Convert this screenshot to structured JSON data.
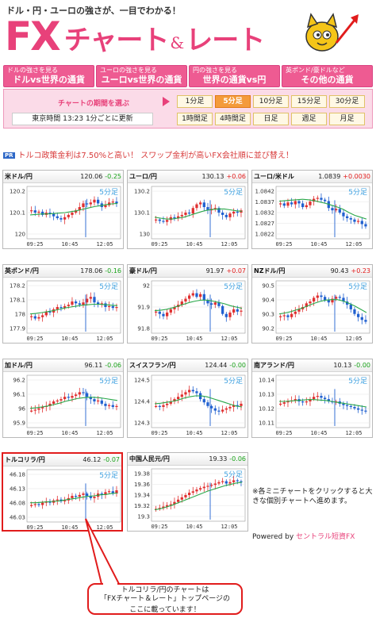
{
  "header": {
    "tagline": "ドル・円・ユーロの強さが、一目でわかる！",
    "logo_fx": "FX",
    "logo_chart": "チャート",
    "logo_amp": "&",
    "logo_rate": "レート",
    "mascot_icon": "cat-mascot-icon"
  },
  "tabs": [
    {
      "small": "ドルの強さを見る",
      "big": "ドルvs世界の通貨"
    },
    {
      "small": "ユーロの強さを見る",
      "big": "ユーロvs世界の通貨"
    },
    {
      "small": "円の強さを見る",
      "big": "世界の通貨vs円"
    },
    {
      "small": "英ポンド/豪ドルなど",
      "big": "その他の通貨"
    }
  ],
  "period": {
    "label": "チャートの期間を選ぶ",
    "clock_text": "東京時間 13:23 1分ごとに更新",
    "buttons": [
      "1分足",
      "5分足",
      "10分足",
      "15分足",
      "30分足",
      "1時間足",
      "4時間足",
      "日足",
      "週足",
      "月足"
    ],
    "active": "5分足"
  },
  "notice": {
    "badge": "PR",
    "text": "トルコ政策金利は7.50%と高い！ スワップ金利が高いFX会社順に並び替え！"
  },
  "colors": {
    "brand_pink": "#e8417a",
    "up": "#e21a1a",
    "down": "#1aa31a",
    "candle_up": "#e03030",
    "candle_down": "#2060d0",
    "ma": "#2aa84a",
    "timeframe_label": "#3da0e0"
  },
  "charts": [
    {
      "name": "米ドル/円",
      "price": "120.06",
      "change": "-0.25",
      "dir": "down",
      "tf": "5分足",
      "y_labels": [
        "120.2",
        "120.1",
        "120"
      ],
      "x_labels": [
        "09:25",
        "10:45",
        "12:05"
      ],
      "trend": [
        0.55,
        0.5,
        0.52,
        0.45,
        0.5,
        0.48,
        0.42,
        0.38,
        0.35,
        0.4,
        0.45,
        0.5,
        0.55,
        0.62,
        0.7,
        0.68,
        0.72,
        0.78,
        0.7,
        0.62,
        0.66,
        0.72,
        0.74,
        0.7
      ],
      "ma": [
        0.45,
        0.46,
        0.47,
        0.47,
        0.48,
        0.49,
        0.5,
        0.52,
        0.54,
        0.57,
        0.6,
        0.63,
        0.65,
        0.67,
        0.69,
        0.7
      ]
    },
    {
      "name": "ユーロ/円",
      "price": "130.13",
      "change": "+0.06",
      "dir": "up",
      "tf": "5分足",
      "y_labels": [
        "130.2",
        "130.1",
        "130"
      ],
      "x_labels": [
        "09:25",
        "10:45",
        "12:05"
      ],
      "trend": [
        0.35,
        0.32,
        0.3,
        0.34,
        0.4,
        0.38,
        0.42,
        0.45,
        0.5,
        0.48,
        0.6,
        0.68,
        0.72,
        0.62,
        0.55,
        0.58,
        0.6,
        0.5,
        0.45,
        0.4,
        0.48,
        0.52,
        0.5,
        0.55
      ],
      "ma": [
        0.4,
        0.38,
        0.36,
        0.36,
        0.38,
        0.4,
        0.44,
        0.48,
        0.52,
        0.55,
        0.57,
        0.58,
        0.58,
        0.56,
        0.54,
        0.53
      ]
    },
    {
      "name": "ユーロ/米ドル",
      "price": "1.0839",
      "change": "+0.0030",
      "dir": "up",
      "tf": "5分足",
      "y_labels": [
        "1.0842",
        "1.0837",
        "1.0832",
        "1.0827",
        "1.0822"
      ],
      "x_labels": [
        "09:25",
        "10:45",
        "12:05"
      ],
      "trend": [
        0.7,
        0.65,
        0.72,
        0.68,
        0.75,
        0.7,
        0.62,
        0.66,
        0.74,
        0.8,
        0.82,
        0.78,
        0.75,
        0.6,
        0.55,
        0.58,
        0.5,
        0.42,
        0.38,
        0.35,
        0.3,
        0.32,
        0.25,
        0.2
      ],
      "ma": [
        0.75,
        0.76,
        0.77,
        0.78,
        0.79,
        0.78,
        0.76,
        0.73,
        0.7,
        0.66,
        0.62,
        0.57,
        0.5,
        0.44,
        0.4,
        0.36
      ]
    },
    {
      "name": "英ポンド/円",
      "price": "178.06",
      "change": "-0.16",
      "dir": "down",
      "tf": "5分足",
      "y_labels": [
        "178.2",
        "178.1",
        "178",
        "177.9"
      ],
      "x_labels": [
        "09:25",
        "10:45",
        "12:05"
      ],
      "trend": [
        0.3,
        0.25,
        0.28,
        0.32,
        0.4,
        0.38,
        0.45,
        0.5,
        0.48,
        0.52,
        0.55,
        0.62,
        0.58,
        0.55,
        0.6,
        0.68,
        0.72,
        0.6,
        0.55,
        0.58,
        0.5,
        0.52,
        0.48,
        0.5
      ],
      "ma": [
        0.35,
        0.36,
        0.38,
        0.4,
        0.42,
        0.45,
        0.48,
        0.5,
        0.52,
        0.54,
        0.55,
        0.56,
        0.56,
        0.55,
        0.54,
        0.53
      ]
    },
    {
      "name": "豪ドル/円",
      "price": "91.97",
      "change": "+0.07",
      "dir": "up",
      "tf": "5分足",
      "y_labels": [
        "92",
        "91.9",
        "91.8"
      ],
      "x_labels": [
        "09:25",
        "10:45",
        "12:05"
      ],
      "trend": [
        0.4,
        0.35,
        0.3,
        0.38,
        0.45,
        0.5,
        0.55,
        0.62,
        0.68,
        0.75,
        0.8,
        0.72,
        0.78,
        0.65,
        0.58,
        0.55,
        0.6,
        0.52,
        0.35,
        0.28,
        0.38,
        0.45,
        0.4,
        0.42
      ],
      "ma": [
        0.42,
        0.43,
        0.45,
        0.48,
        0.52,
        0.56,
        0.6,
        0.63,
        0.65,
        0.65,
        0.63,
        0.6,
        0.57,
        0.53,
        0.5,
        0.47
      ]
    },
    {
      "name": "NZドル/円",
      "price": "90.43",
      "change": "+0.23",
      "dir": "up",
      "tf": "5分足",
      "y_labels": [
        "90.5",
        "90.4",
        "90.3",
        "90.2"
      ],
      "x_labels": [
        "09:25",
        "10:45",
        "12:05"
      ],
      "trend": [
        0.3,
        0.32,
        0.28,
        0.35,
        0.4,
        0.45,
        0.5,
        0.58,
        0.62,
        0.7,
        0.75,
        0.72,
        0.65,
        0.6,
        0.68,
        0.72,
        0.7,
        0.62,
        0.55,
        0.45,
        0.35,
        0.28,
        0.22,
        0.18
      ],
      "ma": [
        0.35,
        0.37,
        0.4,
        0.44,
        0.48,
        0.53,
        0.58,
        0.62,
        0.65,
        0.66,
        0.66,
        0.63,
        0.58,
        0.52,
        0.45,
        0.38
      ]
    },
    {
      "name": "加ドル/円",
      "price": "96.11",
      "change": "-0.06",
      "dir": "down",
      "tf": "5分足",
      "y_labels": [
        "96.2",
        "96.1",
        "96",
        "95.9"
      ],
      "x_labels": [
        "09:25",
        "10:45",
        "12:05"
      ],
      "trend": [
        0.3,
        0.32,
        0.35,
        0.38,
        0.4,
        0.45,
        0.5,
        0.52,
        0.55,
        0.6,
        0.58,
        0.62,
        0.65,
        0.7,
        0.68,
        0.6,
        0.55,
        0.5,
        0.52,
        0.45,
        0.4,
        0.42,
        0.38,
        0.4
      ],
      "ma": [
        0.35,
        0.36,
        0.38,
        0.4,
        0.43,
        0.46,
        0.5,
        0.53,
        0.56,
        0.58,
        0.59,
        0.59,
        0.58,
        0.56,
        0.54,
        0.52
      ]
    },
    {
      "name": "スイスフラン/円",
      "price": "124.44",
      "change": "-0.00",
      "dir": "down",
      "tf": "5分足",
      "y_labels": [
        "124.5",
        "124.4",
        "124.3"
      ],
      "x_labels": [
        "09:25",
        "10:45",
        "12:05"
      ],
      "trend": [
        0.4,
        0.38,
        0.42,
        0.45,
        0.5,
        0.55,
        0.6,
        0.65,
        0.7,
        0.75,
        0.72,
        0.68,
        0.55,
        0.48,
        0.4,
        0.35,
        0.3,
        0.28,
        0.32,
        0.35,
        0.38,
        0.42,
        0.4,
        0.45
      ],
      "ma": [
        0.45,
        0.46,
        0.48,
        0.5,
        0.53,
        0.57,
        0.6,
        0.62,
        0.62,
        0.6,
        0.56,
        0.52,
        0.48,
        0.44,
        0.4,
        0.38
      ]
    },
    {
      "name": "南アランド/円",
      "price": "10.13",
      "change": "-0.00",
      "dir": "down",
      "tf": "5分足",
      "y_labels": [
        "10.14",
        "10.13",
        "10.12",
        "10.11"
      ],
      "x_labels": [
        "09:25",
        "10:45",
        "12:05"
      ],
      "trend": [
        0.45,
        0.48,
        0.5,
        0.52,
        0.55,
        0.5,
        0.48,
        0.5,
        0.55,
        0.6,
        0.62,
        0.58,
        0.55,
        0.5,
        0.48,
        0.5,
        0.45,
        0.42,
        0.4,
        0.38,
        0.35,
        0.32,
        0.3,
        0.28
      ],
      "ma": [
        0.5,
        0.5,
        0.51,
        0.52,
        0.53,
        0.54,
        0.54,
        0.53,
        0.52,
        0.5,
        0.48,
        0.46,
        0.44,
        0.42,
        0.4,
        0.38
      ]
    },
    {
      "name": "トルコリラ/円",
      "price": "46.12",
      "change": "-0.07",
      "dir": "down",
      "tf": "5分足",
      "y_labels": [
        "46.18",
        "46.13",
        "46.08",
        "46.03"
      ],
      "x_labels": [
        "09:25",
        "10:45",
        "12:05"
      ],
      "trend": [
        0.3,
        0.32,
        0.3,
        0.35,
        0.38,
        0.35,
        0.4,
        0.42,
        0.38,
        0.4,
        0.45,
        0.5,
        0.48,
        0.52,
        0.55,
        0.5,
        0.45,
        0.48,
        0.55,
        0.52,
        0.58,
        0.6,
        0.55,
        0.62
      ],
      "ma": [
        0.35,
        0.35,
        0.36,
        0.37,
        0.38,
        0.39,
        0.41,
        0.43,
        0.45,
        0.47,
        0.49,
        0.5,
        0.52,
        0.53,
        0.55,
        0.56
      ]
    },
    {
      "name": "中国人民元/円",
      "price": "19.33",
      "change": "-0.06",
      "dir": "down",
      "tf": "5分足",
      "y_labels": [
        "19.38",
        "19.36",
        "19.34",
        "19.32",
        "19.3"
      ],
      "x_labels": [
        "09:25",
        "10:45",
        "12:05"
      ],
      "trend": [
        0.2,
        0.22,
        0.25,
        0.28,
        0.3,
        0.35,
        0.4,
        0.45,
        0.5,
        0.55,
        0.58,
        0.62,
        0.65,
        0.68,
        0.7,
        0.72,
        0.75,
        0.78,
        0.8,
        0.75,
        0.78,
        0.82,
        0.8,
        0.78
      ],
      "ma": [
        0.18,
        0.2,
        0.24,
        0.28,
        0.33,
        0.38,
        0.43,
        0.48,
        0.53,
        0.58,
        0.62,
        0.66,
        0.7,
        0.73,
        0.76,
        0.78
      ]
    }
  ],
  "note": "※各ミニチャートをクリックすると大きな個別チャートへ進めます。",
  "powered": {
    "prefix": "Powered by",
    "brand": "セントラル短資FX"
  },
  "callout": {
    "line1": "トルコリラ/円のチャートは",
    "line2": "「FXチャート＆レート」トップページの",
    "line3": "ここに載っています！"
  }
}
